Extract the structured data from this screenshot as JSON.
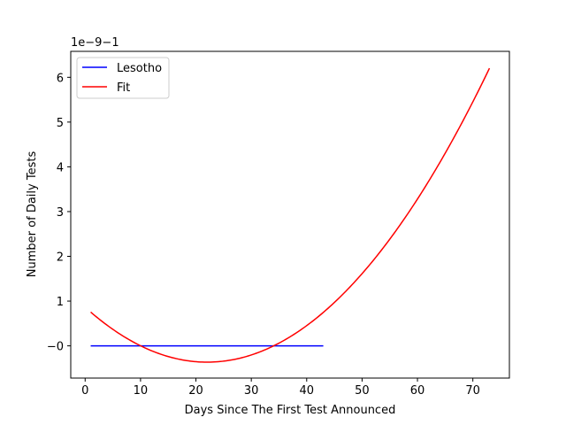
{
  "chart_data": {
    "type": "line",
    "title": "",
    "xlabel": "Days Since The First Test Announced",
    "ylabel": "Number of Daily Tests",
    "y_offset_text": "1e−9−1",
    "xlim": [
      -2.6,
      76.6
    ],
    "ylim": [
      -0.72,
      6.58
    ],
    "x_ticks": [
      0,
      10,
      20,
      30,
      40,
      50,
      60,
      70
    ],
    "y_ticks": [
      0,
      1,
      2,
      3,
      4,
      5,
      6
    ],
    "x_tick_labels": [
      "0",
      "10",
      "20",
      "30",
      "40",
      "50",
      "60",
      "70"
    ],
    "y_tick_labels": [
      "−0",
      "1",
      "2",
      "3",
      "4",
      "5",
      "6"
    ],
    "grid": false,
    "legend_position": "top-left",
    "series": [
      {
        "name": "Lesotho",
        "color": "#0000ff",
        "x": [
          1,
          43
        ],
        "y": [
          0,
          0
        ]
      },
      {
        "name": "Fit",
        "color": "#ff0000",
        "model": "quadratic",
        "x_range": [
          1,
          73
        ],
        "coefficients": {
          "a": 0.002528,
          "b": -0.1114,
          "c": 0.8631
        }
      }
    ]
  }
}
